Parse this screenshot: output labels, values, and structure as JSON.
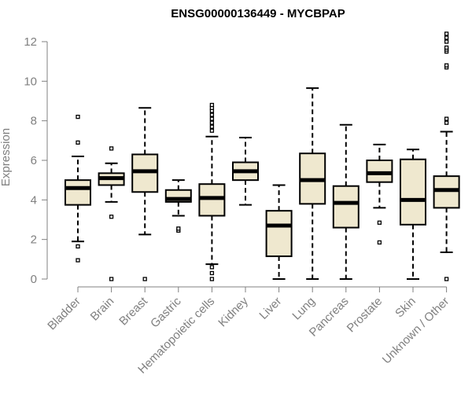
{
  "chart_data": {
    "type": "boxplot",
    "title": "ENSG00000136449 - MYCBPAP",
    "xlabel": "",
    "ylabel": "Expression",
    "ylim": [
      0,
      12
    ],
    "yticks": [
      0,
      2,
      4,
      6,
      8,
      10,
      12
    ],
    "box_fill": "#efe8cf",
    "categories": [
      "Bladder",
      "Brain",
      "Breast",
      "Gastric",
      "Hematopoietic cells",
      "Kidney",
      "Liver",
      "Lung",
      "Pancreas",
      "Prostate",
      "Skin",
      "Unknown / Other"
    ],
    "boxes": [
      {
        "name": "Bladder",
        "whisker_low": 1.9,
        "q1": 3.75,
        "median": 4.6,
        "q3": 5.0,
        "whisker_high": 6.2,
        "outliers": [
          0.95,
          1.65,
          6.9,
          8.2
        ]
      },
      {
        "name": "Brain",
        "whisker_low": 3.9,
        "q1": 4.75,
        "median": 5.1,
        "q3": 5.35,
        "whisker_high": 5.85,
        "outliers": [
          0.0,
          3.15,
          6.6
        ]
      },
      {
        "name": "Breast",
        "whisker_low": 2.25,
        "q1": 4.4,
        "median": 5.45,
        "q3": 6.3,
        "whisker_high": 8.65,
        "outliers": [
          0.0
        ]
      },
      {
        "name": "Gastric",
        "whisker_low": 3.2,
        "q1": 3.9,
        "median": 4.05,
        "q3": 4.5,
        "whisker_high": 5.0,
        "outliers": [
          2.45,
          2.55
        ]
      },
      {
        "name": "Hematopoietic cells",
        "whisker_low": 0.75,
        "q1": 3.2,
        "median": 4.1,
        "q3": 4.8,
        "whisker_high": 7.2,
        "outliers": [
          0.0,
          0.3,
          0.6,
          7.5,
          7.7,
          7.9,
          8.1,
          8.3,
          8.5,
          8.65,
          8.8
        ]
      },
      {
        "name": "Kidney",
        "whisker_low": 3.75,
        "q1": 5.0,
        "median": 5.45,
        "q3": 5.9,
        "whisker_high": 7.15,
        "outliers": []
      },
      {
        "name": "Liver",
        "whisker_low": 0.0,
        "q1": 1.15,
        "median": 2.7,
        "q3": 3.45,
        "whisker_high": 4.75,
        "outliers": []
      },
      {
        "name": "Lung",
        "whisker_low": 0.0,
        "q1": 3.8,
        "median": 5.0,
        "q3": 6.35,
        "whisker_high": 9.65,
        "outliers": []
      },
      {
        "name": "Pancreas",
        "whisker_low": 0.0,
        "q1": 2.6,
        "median": 3.85,
        "q3": 4.7,
        "whisker_high": 7.8,
        "outliers": []
      },
      {
        "name": "Prostate",
        "whisker_low": 3.6,
        "q1": 4.9,
        "median": 5.35,
        "q3": 6.0,
        "whisker_high": 6.8,
        "outliers": [
          1.85,
          2.85
        ]
      },
      {
        "name": "Skin",
        "whisker_low": 0.0,
        "q1": 2.75,
        "median": 4.0,
        "q3": 6.05,
        "whisker_high": 6.55,
        "outliers": []
      },
      {
        "name": "Unknown / Other",
        "whisker_low": 1.35,
        "q1": 3.6,
        "median": 4.5,
        "q3": 5.2,
        "whisker_high": 7.45,
        "outliers": [
          0.0,
          7.9,
          8.1,
          10.7,
          10.8,
          11.5,
          11.6,
          11.7,
          12.0,
          12.2,
          12.4
        ]
      }
    ]
  }
}
